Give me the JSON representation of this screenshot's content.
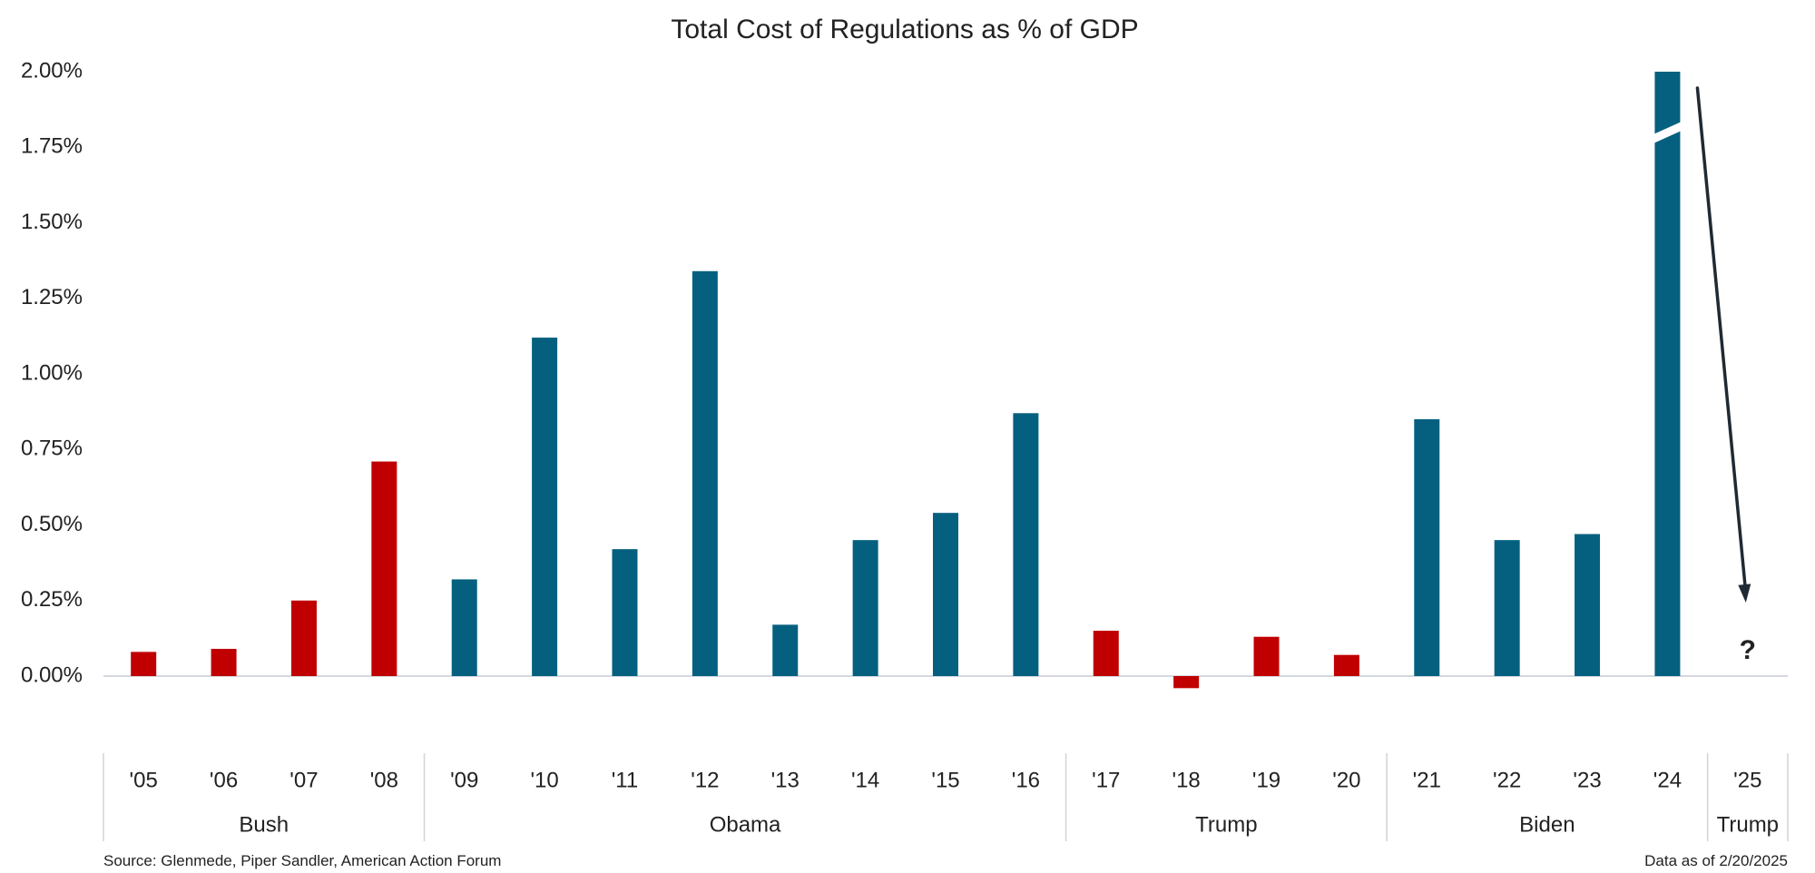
{
  "chart_data": {
    "type": "bar",
    "title": "Total Cost of Regulations as % of GDP",
    "xlabel": "",
    "ylabel": "",
    "ylim": [
      -0.0025,
      0.02
    ],
    "yticks": [
      0.0,
      0.0025,
      0.005,
      0.0075,
      0.01,
      0.0125,
      0.015,
      0.0175,
      0.02
    ],
    "ytick_labels": [
      "0.00%",
      "0.25%",
      "0.50%",
      "0.75%",
      "1.00%",
      "1.25%",
      "1.50%",
      "1.75%",
      "2.00%"
    ],
    "categories": [
      "'05",
      "'06",
      "'07",
      "'08",
      "'09",
      "'10",
      "'11",
      "'12",
      "'13",
      "'14",
      "'15",
      "'16",
      "'17",
      "'18",
      "'19",
      "'20",
      "'21",
      "'22",
      "'23",
      "'24",
      "'25"
    ],
    "values": [
      0.0008,
      0.0009,
      0.0025,
      0.0071,
      0.0032,
      0.0112,
      0.0042,
      0.0134,
      0.0017,
      0.0045,
      0.0054,
      0.0087,
      0.0015,
      -0.0004,
      0.0013,
      0.0007,
      0.0085,
      0.0045,
      0.0047,
      0.02,
      null
    ],
    "bar_party": [
      "R",
      "R",
      "R",
      "R",
      "D",
      "D",
      "D",
      "D",
      "D",
      "D",
      "D",
      "D",
      "R",
      "R",
      "R",
      "R",
      "D",
      "D",
      "D",
      "D",
      null
    ],
    "colors": {
      "R": "#c00000",
      "D": "#05607f",
      "axis": "#d4d8de",
      "separator": "#cfd4da",
      "arrow": "#1f2a33"
    },
    "truncated_bar_index": 19,
    "unknown_index": 20,
    "unknown_label": "?",
    "administrations": [
      {
        "name": "Bush",
        "start": 0,
        "end": 3
      },
      {
        "name": "Obama",
        "start": 4,
        "end": 11
      },
      {
        "name": "Trump",
        "start": 12,
        "end": 15
      },
      {
        "name": "Biden",
        "start": 16,
        "end": 19
      },
      {
        "name": "Trump",
        "start": 20,
        "end": 20
      }
    ]
  },
  "footer": {
    "source": "Source: Glenmede, Piper Sandler, American Action Forum",
    "data_as_of": "Data as of 2/20/2025"
  }
}
